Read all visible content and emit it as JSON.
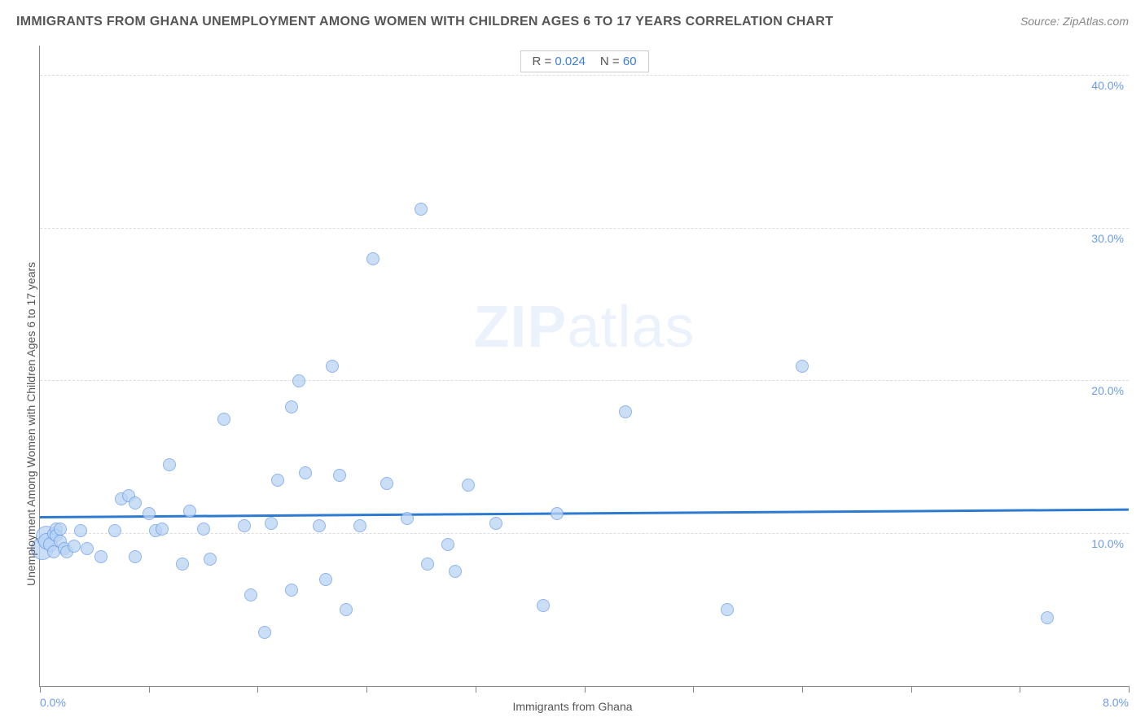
{
  "header": {
    "title": "IMMIGRANTS FROM GHANA UNEMPLOYMENT AMONG WOMEN WITH CHILDREN AGES 6 TO 17 YEARS CORRELATION CHART",
    "source": "Source: ZipAtlas.com"
  },
  "legend": {
    "r_label": "R = ",
    "r_value": "0.024",
    "n_label": "N = ",
    "n_value": "60"
  },
  "watermark": {
    "zip": "ZIP",
    "atlas": "atlas"
  },
  "chart": {
    "type": "scatter",
    "xlabel": "Immigrants from Ghana",
    "ylabel": "Unemployment Among Women with Children Ages 6 to 17 years",
    "xlim": [
      0.0,
      8.0
    ],
    "ylim": [
      0.0,
      42.0
    ],
    "x_axis_labels": [
      {
        "val": 0.0,
        "text": "0.0%"
      },
      {
        "val": 8.0,
        "text": "8.0%"
      }
    ],
    "y_gridlines": [
      {
        "val": 10.0,
        "text": "10.0%"
      },
      {
        "val": 20.0,
        "text": "20.0%"
      },
      {
        "val": 30.0,
        "text": "30.0%"
      },
      {
        "val": 40.0,
        "text": "40.0%"
      }
    ],
    "x_ticks": [
      0.0,
      0.8,
      1.6,
      2.4,
      3.2,
      4.0,
      4.8,
      5.6,
      6.4,
      7.2,
      8.0
    ],
    "trendline": {
      "y_at_xmin": 11.0,
      "y_at_xmax": 11.5,
      "color": "#2f7ad1",
      "width": 3
    },
    "point_style": {
      "fill": "#b9d4f4",
      "stroke": "#6b9be8",
      "stroke_width": 1,
      "opacity": 0.75,
      "default_radius": 8
    },
    "points": [
      {
        "x": 0.02,
        "y": 9.0,
        "r": 14
      },
      {
        "x": 0.05,
        "y": 9.8,
        "r": 13
      },
      {
        "x": 0.05,
        "y": 9.5,
        "r": 10
      },
      {
        "x": 0.08,
        "y": 9.3,
        "r": 9
      },
      {
        "x": 0.1,
        "y": 10.0,
        "r": 8
      },
      {
        "x": 0.1,
        "y": 8.8,
        "r": 8
      },
      {
        "x": 0.12,
        "y": 10.3,
        "r": 8
      },
      {
        "x": 0.12,
        "y": 9.9,
        "r": 8
      },
      {
        "x": 0.15,
        "y": 9.5,
        "r": 8
      },
      {
        "x": 0.15,
        "y": 10.3,
        "r": 8
      },
      {
        "x": 0.18,
        "y": 9.0,
        "r": 8
      },
      {
        "x": 0.2,
        "y": 8.8,
        "r": 8
      },
      {
        "x": 0.25,
        "y": 9.2,
        "r": 8
      },
      {
        "x": 0.3,
        "y": 10.2,
        "r": 8
      },
      {
        "x": 0.35,
        "y": 9.0,
        "r": 8
      },
      {
        "x": 0.45,
        "y": 8.5,
        "r": 8
      },
      {
        "x": 0.55,
        "y": 10.2,
        "r": 8
      },
      {
        "x": 0.6,
        "y": 12.3,
        "r": 8
      },
      {
        "x": 0.65,
        "y": 12.5,
        "r": 8
      },
      {
        "x": 0.7,
        "y": 12.0,
        "r": 8
      },
      {
        "x": 0.7,
        "y": 8.5,
        "r": 8
      },
      {
        "x": 0.8,
        "y": 11.3,
        "r": 8
      },
      {
        "x": 0.85,
        "y": 10.2,
        "r": 8
      },
      {
        "x": 0.9,
        "y": 10.3,
        "r": 8
      },
      {
        "x": 0.95,
        "y": 14.5,
        "r": 8
      },
      {
        "x": 1.05,
        "y": 8.0,
        "r": 8
      },
      {
        "x": 1.1,
        "y": 11.5,
        "r": 8
      },
      {
        "x": 1.2,
        "y": 10.3,
        "r": 8
      },
      {
        "x": 1.25,
        "y": 8.3,
        "r": 8
      },
      {
        "x": 1.35,
        "y": 17.5,
        "r": 8
      },
      {
        "x": 1.5,
        "y": 10.5,
        "r": 8
      },
      {
        "x": 1.55,
        "y": 6.0,
        "r": 8
      },
      {
        "x": 1.65,
        "y": 3.5,
        "r": 8
      },
      {
        "x": 1.7,
        "y": 10.7,
        "r": 8
      },
      {
        "x": 1.75,
        "y": 13.5,
        "r": 8
      },
      {
        "x": 1.85,
        "y": 18.3,
        "r": 8
      },
      {
        "x": 1.85,
        "y": 6.3,
        "r": 8
      },
      {
        "x": 1.9,
        "y": 20.0,
        "r": 8
      },
      {
        "x": 1.95,
        "y": 14.0,
        "r": 8
      },
      {
        "x": 2.05,
        "y": 10.5,
        "r": 8
      },
      {
        "x": 2.1,
        "y": 7.0,
        "r": 8
      },
      {
        "x": 2.15,
        "y": 21.0,
        "r": 8
      },
      {
        "x": 2.2,
        "y": 13.8,
        "r": 8
      },
      {
        "x": 2.25,
        "y": 5.0,
        "r": 8
      },
      {
        "x": 2.35,
        "y": 10.5,
        "r": 8
      },
      {
        "x": 2.45,
        "y": 28.0,
        "r": 8
      },
      {
        "x": 2.55,
        "y": 13.3,
        "r": 8
      },
      {
        "x": 2.7,
        "y": 11.0,
        "r": 8
      },
      {
        "x": 2.8,
        "y": 31.3,
        "r": 8
      },
      {
        "x": 2.85,
        "y": 8.0,
        "r": 8
      },
      {
        "x": 3.0,
        "y": 9.3,
        "r": 8
      },
      {
        "x": 3.05,
        "y": 7.5,
        "r": 8
      },
      {
        "x": 3.15,
        "y": 13.2,
        "r": 8
      },
      {
        "x": 3.35,
        "y": 10.7,
        "r": 8
      },
      {
        "x": 3.7,
        "y": 5.3,
        "r": 8
      },
      {
        "x": 3.8,
        "y": 11.3,
        "r": 8
      },
      {
        "x": 4.3,
        "y": 18.0,
        "r": 8
      },
      {
        "x": 5.05,
        "y": 5.0,
        "r": 8
      },
      {
        "x": 5.6,
        "y": 21.0,
        "r": 8
      },
      {
        "x": 7.4,
        "y": 4.5,
        "r": 8
      }
    ]
  }
}
